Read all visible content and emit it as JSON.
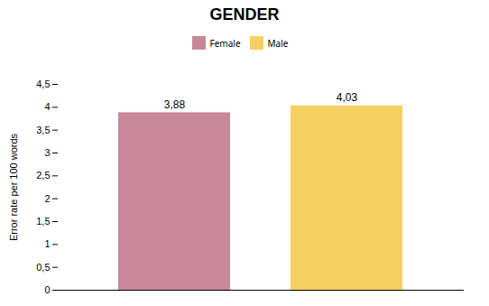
{
  "chart_data": {
    "type": "bar",
    "title": "GENDER",
    "categories": [
      "Female",
      "Male"
    ],
    "values": [
      3.88,
      4.03
    ],
    "value_labels": [
      "3,88",
      "4,03"
    ],
    "data_labels": true,
    "colors": [
      "#c9879a",
      "#f5d060"
    ],
    "ylabel": "Error rate per 100 words",
    "ylim": [
      0,
      4.5
    ],
    "yticks": [
      0,
      {
        "value": 0.5,
        "label": "0,5"
      },
      1,
      {
        "value": 1.5,
        "label": "1,5"
      },
      2,
      {
        "value": 2.5,
        "label": "2,5"
      },
      3,
      {
        "value": 3.5,
        "label": "3,5"
      },
      4,
      {
        "value": 4.5,
        "label": "4,5"
      }
    ],
    "grid": false,
    "legend": "top",
    "tick_labels": "y"
  }
}
